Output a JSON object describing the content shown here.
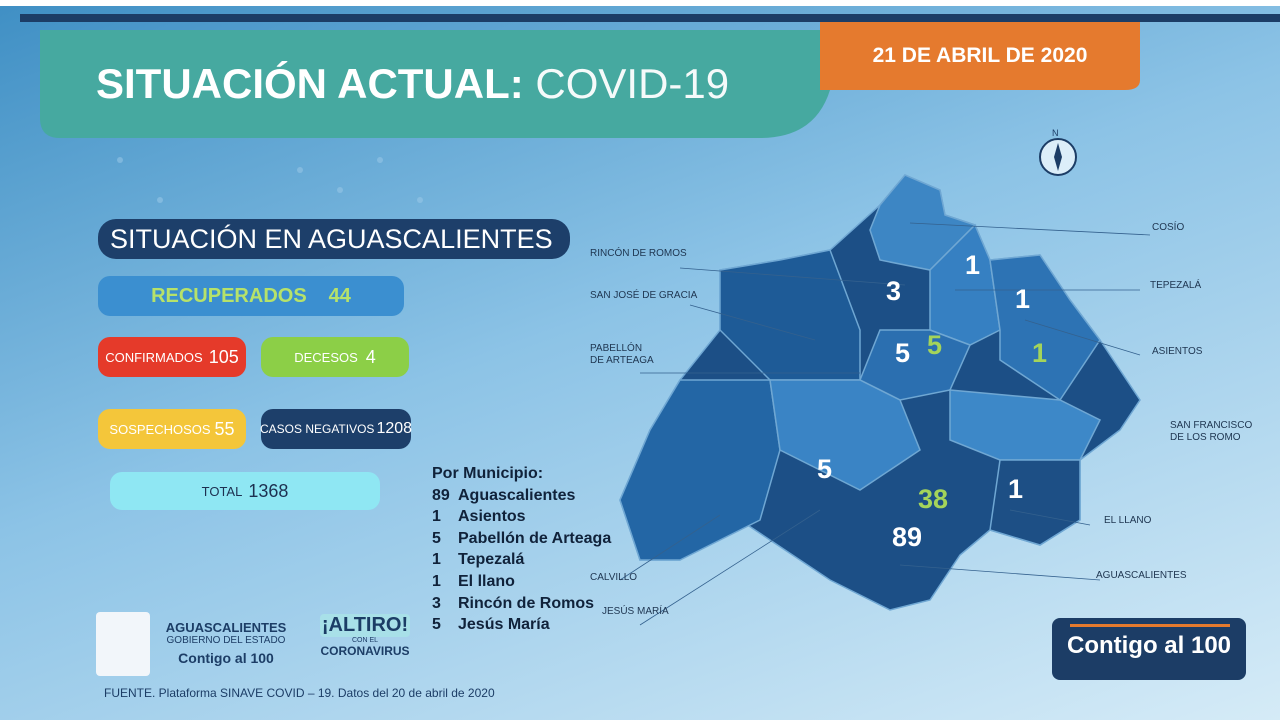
{
  "header": {
    "title_bold": "SITUACIÓN ACTUAL:",
    "title_light": "COVID-19",
    "date": "21 DE ABRIL DE 2020"
  },
  "section_title": "SITUACIÓN EN AGUASCALIENTES",
  "stats": {
    "recuperados": {
      "label": "RECUPERADOS",
      "value": 44
    },
    "confirmados": {
      "label": "CONFIRMADOS",
      "value": 105
    },
    "decesos": {
      "label": "DECESOS",
      "value": 4
    },
    "sospechosos": {
      "label": "SOSPECHOSOS",
      "value": 55
    },
    "negativos": {
      "label": "CASOS NEGATIVOS",
      "value": 1208
    },
    "total": {
      "label": "TOTAL",
      "value": 1368
    }
  },
  "municipios": {
    "title": "Por Municipio:",
    "items": [
      {
        "count": 89,
        "name": "Aguascalientes"
      },
      {
        "count": 1,
        "name": "Asientos"
      },
      {
        "count": 5,
        "name": "Pabellón de Arteaga"
      },
      {
        "count": 1,
        "name": "Tepezalá"
      },
      {
        "count": 1,
        "name": "El llano"
      },
      {
        "count": 3,
        "name": "Rincón de Romos"
      },
      {
        "count": 5,
        "name": "Jesús María"
      }
    ]
  },
  "map": {
    "compass": "N",
    "labels": [
      [
        "COSÍO"
      ],
      [
        "TEPEZALÁ"
      ],
      [
        "ASIENTOS"
      ],
      [
        "SAN FRANCISCO",
        "DE LOS ROMO"
      ],
      [
        "EL LLANO"
      ],
      [
        "AGUASCALIENTES"
      ],
      [
        "RINCÓN DE ROMOS"
      ],
      [
        "SAN JOSÉ DE GRACIA"
      ],
      [
        "PABELLÓN",
        "DE ARTEAGA"
      ],
      [
        "CALVILLO"
      ],
      [
        "JESÚS MARÍA"
      ]
    ],
    "numbers": [
      1,
      3,
      1,
      5,
      5,
      1,
      5,
      38,
      1,
      89
    ]
  },
  "logos": {
    "state": "AGUASCALIENTES",
    "gov": "GOBIERNO DEL ESTADO",
    "slogan": "Contigo al 100",
    "altiro": "¡ALTIRO!",
    "con_el": "CON EL",
    "coronavirus": "CORONAVIRUS",
    "badge": "Contigo al 100"
  },
  "source": "FUENTE. Plataforma SINAVE COVID – 19. Datos del 20 de abril de 2020"
}
